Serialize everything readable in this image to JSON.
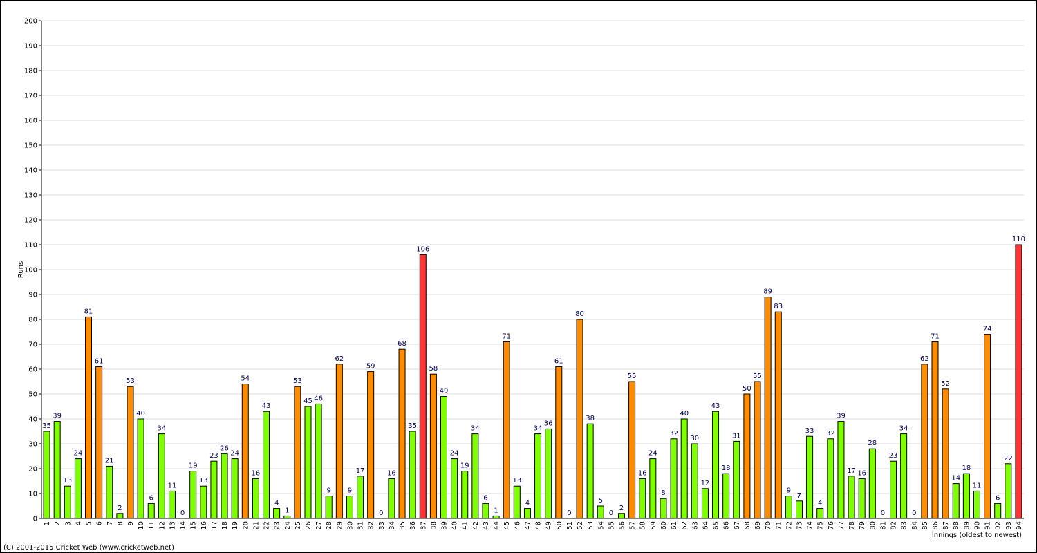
{
  "chart_data": {
    "type": "bar",
    "y_label": "Runs",
    "x_label": "Innings (oldest to newest)",
    "footer": "(C) 2001-2015 Cricket Web (www.cricketweb.net)",
    "categories": [
      "1",
      "2",
      "3",
      "4",
      "5",
      "6",
      "7",
      "8",
      "9",
      "10",
      "11",
      "12",
      "13",
      "14",
      "15",
      "16",
      "17",
      "18",
      "19",
      "20",
      "21",
      "22",
      "23",
      "24",
      "25",
      "26",
      "27",
      "28",
      "29",
      "30",
      "31",
      "32",
      "33",
      "34",
      "35",
      "36",
      "37",
      "38",
      "39",
      "40",
      "41",
      "42",
      "43",
      "44",
      "45",
      "46",
      "47",
      "48",
      "49",
      "50",
      "51",
      "52",
      "53",
      "54",
      "55",
      "56",
      "57",
      "58",
      "59",
      "60",
      "61",
      "62",
      "63",
      "64",
      "65",
      "66",
      "67",
      "68",
      "69",
      "70",
      "71",
      "72",
      "73",
      "74",
      "75",
      "76",
      "77",
      "78",
      "79",
      "80",
      "81",
      "82",
      "83",
      "84",
      "85",
      "86",
      "87",
      "88",
      "89",
      "90",
      "91",
      "92",
      "93",
      "94"
    ],
    "values": [
      35,
      39,
      13,
      24,
      81,
      61,
      21,
      2,
      53,
      40,
      6,
      34,
      11,
      0,
      19,
      13,
      23,
      26,
      24,
      54,
      16,
      43,
      4,
      1,
      53,
      45,
      46,
      9,
      62,
      9,
      17,
      59,
      0,
      16,
      68,
      35,
      106,
      58,
      49,
      24,
      19,
      34,
      6,
      1,
      71,
      13,
      4,
      34,
      36,
      61,
      0,
      80,
      38,
      5,
      0,
      2,
      55,
      16,
      24,
      8,
      32,
      40,
      30,
      12,
      43,
      18,
      31,
      50,
      55,
      89,
      83,
      9,
      7,
      33,
      4,
      32,
      39,
      17,
      16,
      28,
      0,
      23,
      34,
      0,
      62,
      71,
      52,
      14,
      18,
      11,
      74,
      6,
      22,
      110
    ],
    "colors": [
      "#80ff00",
      "#80ff00",
      "#80ff00",
      "#80ff00",
      "#ff8c00",
      "#ff8c00",
      "#80ff00",
      "#80ff00",
      "#ff8c00",
      "#80ff00",
      "#80ff00",
      "#80ff00",
      "#80ff00",
      "#80ff00",
      "#80ff00",
      "#80ff00",
      "#80ff00",
      "#80ff00",
      "#80ff00",
      "#ff8c00",
      "#80ff00",
      "#80ff00",
      "#80ff00",
      "#80ff00",
      "#ff8c00",
      "#80ff00",
      "#80ff00",
      "#80ff00",
      "#ff8c00",
      "#80ff00",
      "#80ff00",
      "#ff8c00",
      "#80ff00",
      "#80ff00",
      "#ff8c00",
      "#80ff00",
      "#ff3333",
      "#ff8c00",
      "#80ff00",
      "#80ff00",
      "#80ff00",
      "#80ff00",
      "#80ff00",
      "#80ff00",
      "#ff8c00",
      "#80ff00",
      "#80ff00",
      "#80ff00",
      "#80ff00",
      "#ff8c00",
      "#80ff00",
      "#ff8c00",
      "#80ff00",
      "#80ff00",
      "#80ff00",
      "#80ff00",
      "#ff8c00",
      "#80ff00",
      "#80ff00",
      "#80ff00",
      "#80ff00",
      "#80ff00",
      "#80ff00",
      "#80ff00",
      "#80ff00",
      "#80ff00",
      "#80ff00",
      "#ff8c00",
      "#ff8c00",
      "#ff8c00",
      "#ff8c00",
      "#80ff00",
      "#80ff00",
      "#80ff00",
      "#80ff00",
      "#80ff00",
      "#80ff00",
      "#80ff00",
      "#80ff00",
      "#80ff00",
      "#80ff00",
      "#80ff00",
      "#80ff00",
      "#80ff00",
      "#ff8c00",
      "#ff8c00",
      "#ff8c00",
      "#80ff00",
      "#80ff00",
      "#80ff00",
      "#ff8c00",
      "#80ff00",
      "#80ff00",
      "#ff3333"
    ],
    "ylim": [
      0,
      200
    ],
    "yticks": [
      0,
      10,
      20,
      30,
      40,
      50,
      60,
      70,
      80,
      90,
      100,
      110,
      120,
      130,
      140,
      150,
      160,
      170,
      180,
      190,
      200
    ],
    "grid": true
  }
}
